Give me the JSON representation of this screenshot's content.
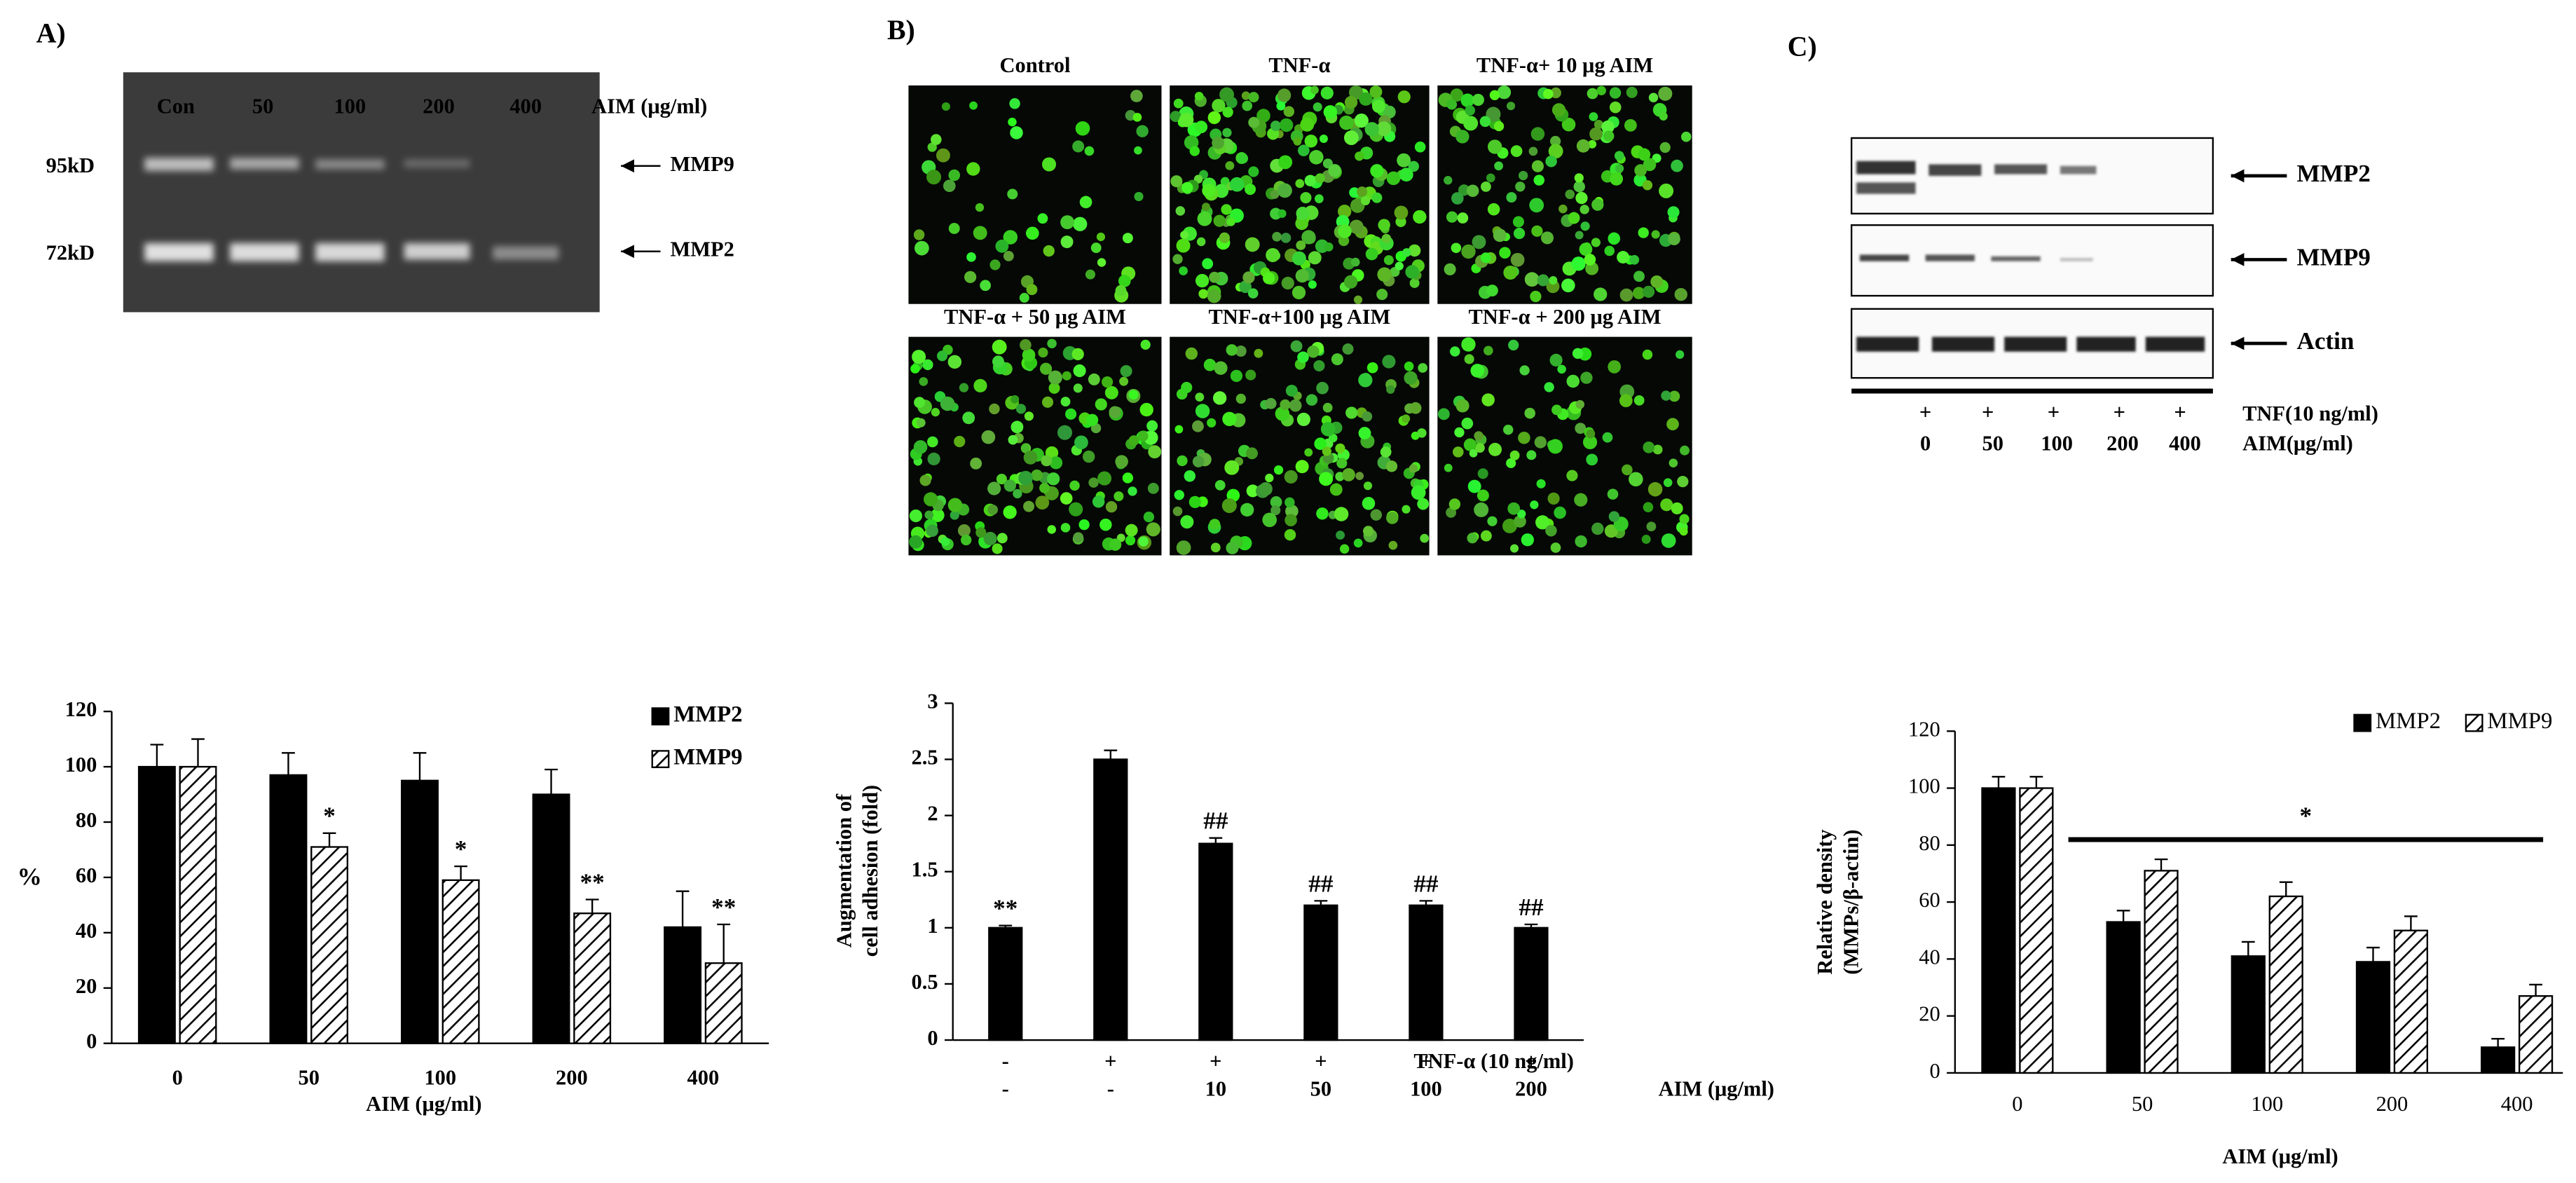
{
  "panels": {
    "a": {
      "letter": "A)",
      "lanes": [
        "Con",
        "50",
        "100",
        "200",
        "400"
      ],
      "lane_unit": "AIM (μg/ml)",
      "sizes": [
        "95kD",
        "72kD"
      ],
      "bands": [
        "MMP9",
        "MMP2"
      ]
    },
    "b": {
      "letter": "B)",
      "captions": [
        "Control",
        "TNF-α",
        "TNF-α+ 10 μg AIM",
        "TNF-α + 50 μg AIM",
        "TNF-α+100 μg AIM",
        "TNF-α + 200 μg AIM"
      ]
    },
    "c": {
      "letter": "C)",
      "blots": [
        "MMP2",
        "MMP9",
        "Actin"
      ],
      "tnf_row": [
        "+",
        "+",
        "+",
        "+",
        "+"
      ],
      "tnf_label": "TNF(10 ng/ml)",
      "aim_row": [
        "0",
        "50",
        "100",
        "200",
        "400"
      ],
      "aim_label": "AIM(μg/ml)"
    }
  },
  "chart_data": [
    {
      "type": "bar",
      "categories": [
        "0",
        "50",
        "100",
        "200",
        "400"
      ],
      "xlabel": "AIM (μg/ml)",
      "ylabel": [
        "%"
      ],
      "ylim": [
        0,
        120
      ],
      "yticks": [
        0,
        20,
        40,
        60,
        80,
        100,
        120
      ],
      "legend": "top-right",
      "series": [
        {
          "name": "MMP2",
          "color": "#000000",
          "values": [
            100,
            97,
            95,
            90,
            42
          ],
          "errors": [
            8,
            8,
            10,
            9,
            13
          ],
          "annotations": [
            null,
            null,
            null,
            null,
            null
          ]
        },
        {
          "name": "MMP9",
          "color": "#000000",
          "pattern": "hatched",
          "values": [
            100,
            71,
            59,
            47,
            29
          ],
          "errors": [
            10,
            5,
            5,
            5,
            14
          ],
          "annotations": [
            null,
            "*",
            "*",
            "**",
            "**"
          ]
        }
      ]
    },
    {
      "type": "bar",
      "category_rows": [
        {
          "label": "TNF-α (10 ng/ml)",
          "labels": [
            "-",
            "+",
            "+",
            "+",
            "+",
            "+"
          ]
        },
        {
          "label": "AIM (μg/ml)",
          "labels": [
            "-",
            "-",
            "10",
            "50",
            "100",
            "200"
          ]
        }
      ],
      "ylabel": [
        "Augmentation of",
        "cell adhesion (fold)"
      ],
      "ylim": [
        0,
        3
      ],
      "yticks": [
        0,
        0.5,
        1,
        1.5,
        2,
        2.5,
        3
      ],
      "color": "#000000",
      "values": [
        1,
        2.5,
        1.75,
        1.2,
        1.2,
        1
      ],
      "errors": [
        0.02,
        0.08,
        0.05,
        0.04,
        0.04,
        0.03
      ],
      "annotations": [
        "**",
        null,
        "##",
        "##",
        "##",
        "##"
      ]
    },
    {
      "type": "bar",
      "categories": [
        "0",
        "50",
        "100",
        "200",
        "400"
      ],
      "xlabel": "AIM (μg/ml)",
      "ylabel": [
        "Relative density",
        "(MMPs/β-actin)"
      ],
      "ylim": [
        0,
        120
      ],
      "yticks": [
        0,
        20,
        40,
        60,
        80,
        100,
        120
      ],
      "legend": "top-right",
      "annotation": "*",
      "series": [
        {
          "name": "MMP2",
          "color": "#000000",
          "values": [
            100,
            53,
            41,
            39,
            9
          ],
          "errors": [
            4,
            4,
            5,
            5,
            3
          ]
        },
        {
          "name": "MMP9",
          "color": "#000000",
          "pattern": "hatched",
          "values": [
            100,
            71,
            62,
            50,
            27
          ],
          "errors": [
            4,
            4,
            5,
            5,
            4
          ]
        }
      ]
    }
  ]
}
